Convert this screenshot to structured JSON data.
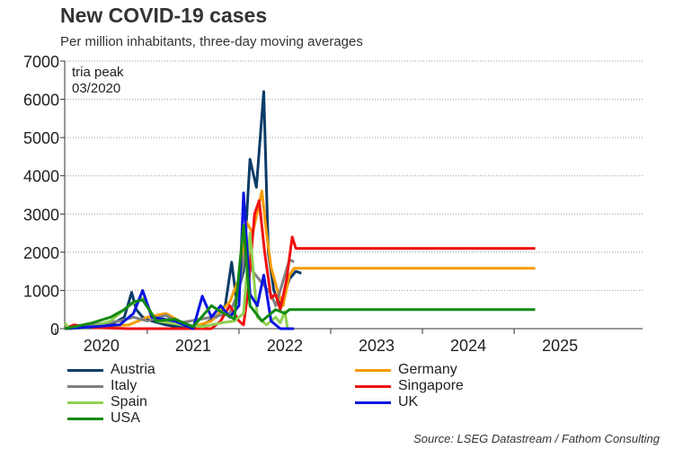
{
  "chart_data": {
    "type": "line",
    "title": "New COVID-19 cases",
    "subtitle": "Per million inhabitants, three-day moving averages",
    "annotation": [
      "tria peak",
      "03/2020"
    ],
    "ylim": [
      0,
      7000
    ],
    "yticks": [
      0,
      1000,
      2000,
      3000,
      4000,
      5000,
      6000,
      7000
    ],
    "xlim": [
      2019.6,
      2025.9
    ],
    "xticks": [
      2020,
      2021,
      2022,
      2023,
      2024,
      2025
    ],
    "grid": true,
    "legend_position": "bottom",
    "series": [
      {
        "name": "Austria",
        "color": "#0b3c68",
        "points": [
          [
            2019.6,
            0
          ],
          [
            2019.9,
            30
          ],
          [
            2020.1,
            100
          ],
          [
            2020.25,
            300
          ],
          [
            2020.33,
            950
          ],
          [
            2020.38,
            500
          ],
          [
            2020.45,
            300
          ],
          [
            2020.55,
            200
          ],
          [
            2020.7,
            100
          ],
          [
            2020.9,
            20
          ],
          [
            2021.1,
            100
          ],
          [
            2021.25,
            300
          ],
          [
            2021.35,
            600
          ],
          [
            2021.42,
            1740
          ],
          [
            2021.47,
            800
          ],
          [
            2021.55,
            1500
          ],
          [
            2021.62,
            4430
          ],
          [
            2021.69,
            3700
          ],
          [
            2021.77,
            6200
          ],
          [
            2021.82,
            2000
          ],
          [
            2021.88,
            1000
          ],
          [
            2021.95,
            600
          ],
          [
            2022.05,
            1300
          ],
          [
            2022.12,
            1500
          ],
          [
            2022.18,
            1450
          ]
        ]
      },
      {
        "name": "Germany",
        "color": "#f59c00",
        "points": [
          [
            2019.6,
            0
          ],
          [
            2020.3,
            100
          ],
          [
            2020.5,
            300
          ],
          [
            2020.7,
            400
          ],
          [
            2020.85,
            200
          ],
          [
            2021.0,
            50
          ],
          [
            2021.2,
            200
          ],
          [
            2021.4,
            700
          ],
          [
            2021.5,
            1300
          ],
          [
            2021.58,
            2800
          ],
          [
            2021.65,
            2500
          ],
          [
            2021.75,
            3600
          ],
          [
            2021.8,
            2500
          ],
          [
            2021.85,
            1600
          ],
          [
            2021.92,
            1000
          ],
          [
            2021.98,
            600
          ],
          [
            2022.05,
            1400
          ],
          [
            2022.1,
            1580
          ],
          [
            2024.73,
            1580
          ]
        ]
      },
      {
        "name": "Italy",
        "color": "#808080",
        "points": [
          [
            2019.6,
            0
          ],
          [
            2020.2,
            200
          ],
          [
            2020.35,
            300
          ],
          [
            2020.5,
            200
          ],
          [
            2020.7,
            350
          ],
          [
            2020.85,
            150
          ],
          [
            2021.2,
            300
          ],
          [
            2021.4,
            400
          ],
          [
            2021.5,
            1000
          ],
          [
            2021.58,
            2200
          ],
          [
            2021.65,
            1500
          ],
          [
            2021.75,
            1200
          ],
          [
            2021.85,
            900
          ],
          [
            2021.9,
            600
          ],
          [
            2022.05,
            1800
          ],
          [
            2022.1,
            1750
          ]
        ]
      },
      {
        "name": "Singapore",
        "color": "#f01010",
        "points": [
          [
            2019.6,
            0
          ],
          [
            2019.7,
            100
          ],
          [
            2019.9,
            30
          ],
          [
            2020.3,
            0
          ],
          [
            2021.2,
            0
          ],
          [
            2021.3,
            200
          ],
          [
            2021.4,
            600
          ],
          [
            2021.5,
            200
          ],
          [
            2021.55,
            100
          ],
          [
            2021.6,
            1000
          ],
          [
            2021.67,
            3000
          ],
          [
            2021.72,
            3350
          ],
          [
            2021.78,
            2000
          ],
          [
            2021.85,
            800
          ],
          [
            2021.9,
            900
          ],
          [
            2021.95,
            500
          ],
          [
            2022.02,
            1300
          ],
          [
            2022.08,
            2400
          ],
          [
            2022.12,
            2100
          ],
          [
            2024.73,
            2100
          ]
        ]
      },
      {
        "name": "Spain",
        "color": "#8fd14f",
        "points": [
          [
            2019.6,
            150
          ],
          [
            2019.65,
            0
          ],
          [
            2019.9,
            50
          ],
          [
            2020.1,
            200
          ],
          [
            2020.3,
            600
          ],
          [
            2020.45,
            800
          ],
          [
            2020.6,
            200
          ],
          [
            2020.9,
            100
          ],
          [
            2021.1,
            50
          ],
          [
            2021.3,
            150
          ],
          [
            2021.45,
            200
          ],
          [
            2021.55,
            400
          ],
          [
            2021.62,
            2500
          ],
          [
            2021.7,
            300
          ],
          [
            2021.8,
            100
          ],
          [
            2021.9,
            300
          ],
          [
            2021.95,
            150
          ],
          [
            2022.0,
            450
          ],
          [
            2022.03,
            0
          ]
        ]
      },
      {
        "name": "UK",
        "color": "#0a14e0",
        "points": [
          [
            2019.6,
            0
          ],
          [
            2020.2,
            100
          ],
          [
            2020.35,
            400
          ],
          [
            2020.45,
            1000
          ],
          [
            2020.55,
            300
          ],
          [
            2020.8,
            200
          ],
          [
            2021.0,
            0
          ],
          [
            2021.1,
            850
          ],
          [
            2021.2,
            300
          ],
          [
            2021.3,
            600
          ],
          [
            2021.4,
            300
          ],
          [
            2021.5,
            600
          ],
          [
            2021.55,
            3550
          ],
          [
            2021.62,
            900
          ],
          [
            2021.7,
            600
          ],
          [
            2021.77,
            1400
          ],
          [
            2021.85,
            200
          ],
          [
            2021.95,
            0
          ],
          [
            2022.1,
            0
          ]
        ]
      },
      {
        "name": "USA",
        "color": "#138a13",
        "points": [
          [
            2019.6,
            0
          ],
          [
            2019.9,
            150
          ],
          [
            2020.1,
            300
          ],
          [
            2020.25,
            500
          ],
          [
            2020.35,
            700
          ],
          [
            2020.45,
            750
          ],
          [
            2020.6,
            200
          ],
          [
            2020.8,
            250
          ],
          [
            2021.0,
            50
          ],
          [
            2021.2,
            600
          ],
          [
            2021.3,
            450
          ],
          [
            2021.45,
            250
          ],
          [
            2021.55,
            2700
          ],
          [
            2021.62,
            600
          ],
          [
            2021.75,
            200
          ],
          [
            2021.9,
            500
          ],
          [
            2022.0,
            400
          ],
          [
            2022.05,
            500
          ],
          [
            2024.73,
            500
          ]
        ]
      }
    ],
    "source": "Source: LSEG Datastream / Fathom Consulting"
  }
}
